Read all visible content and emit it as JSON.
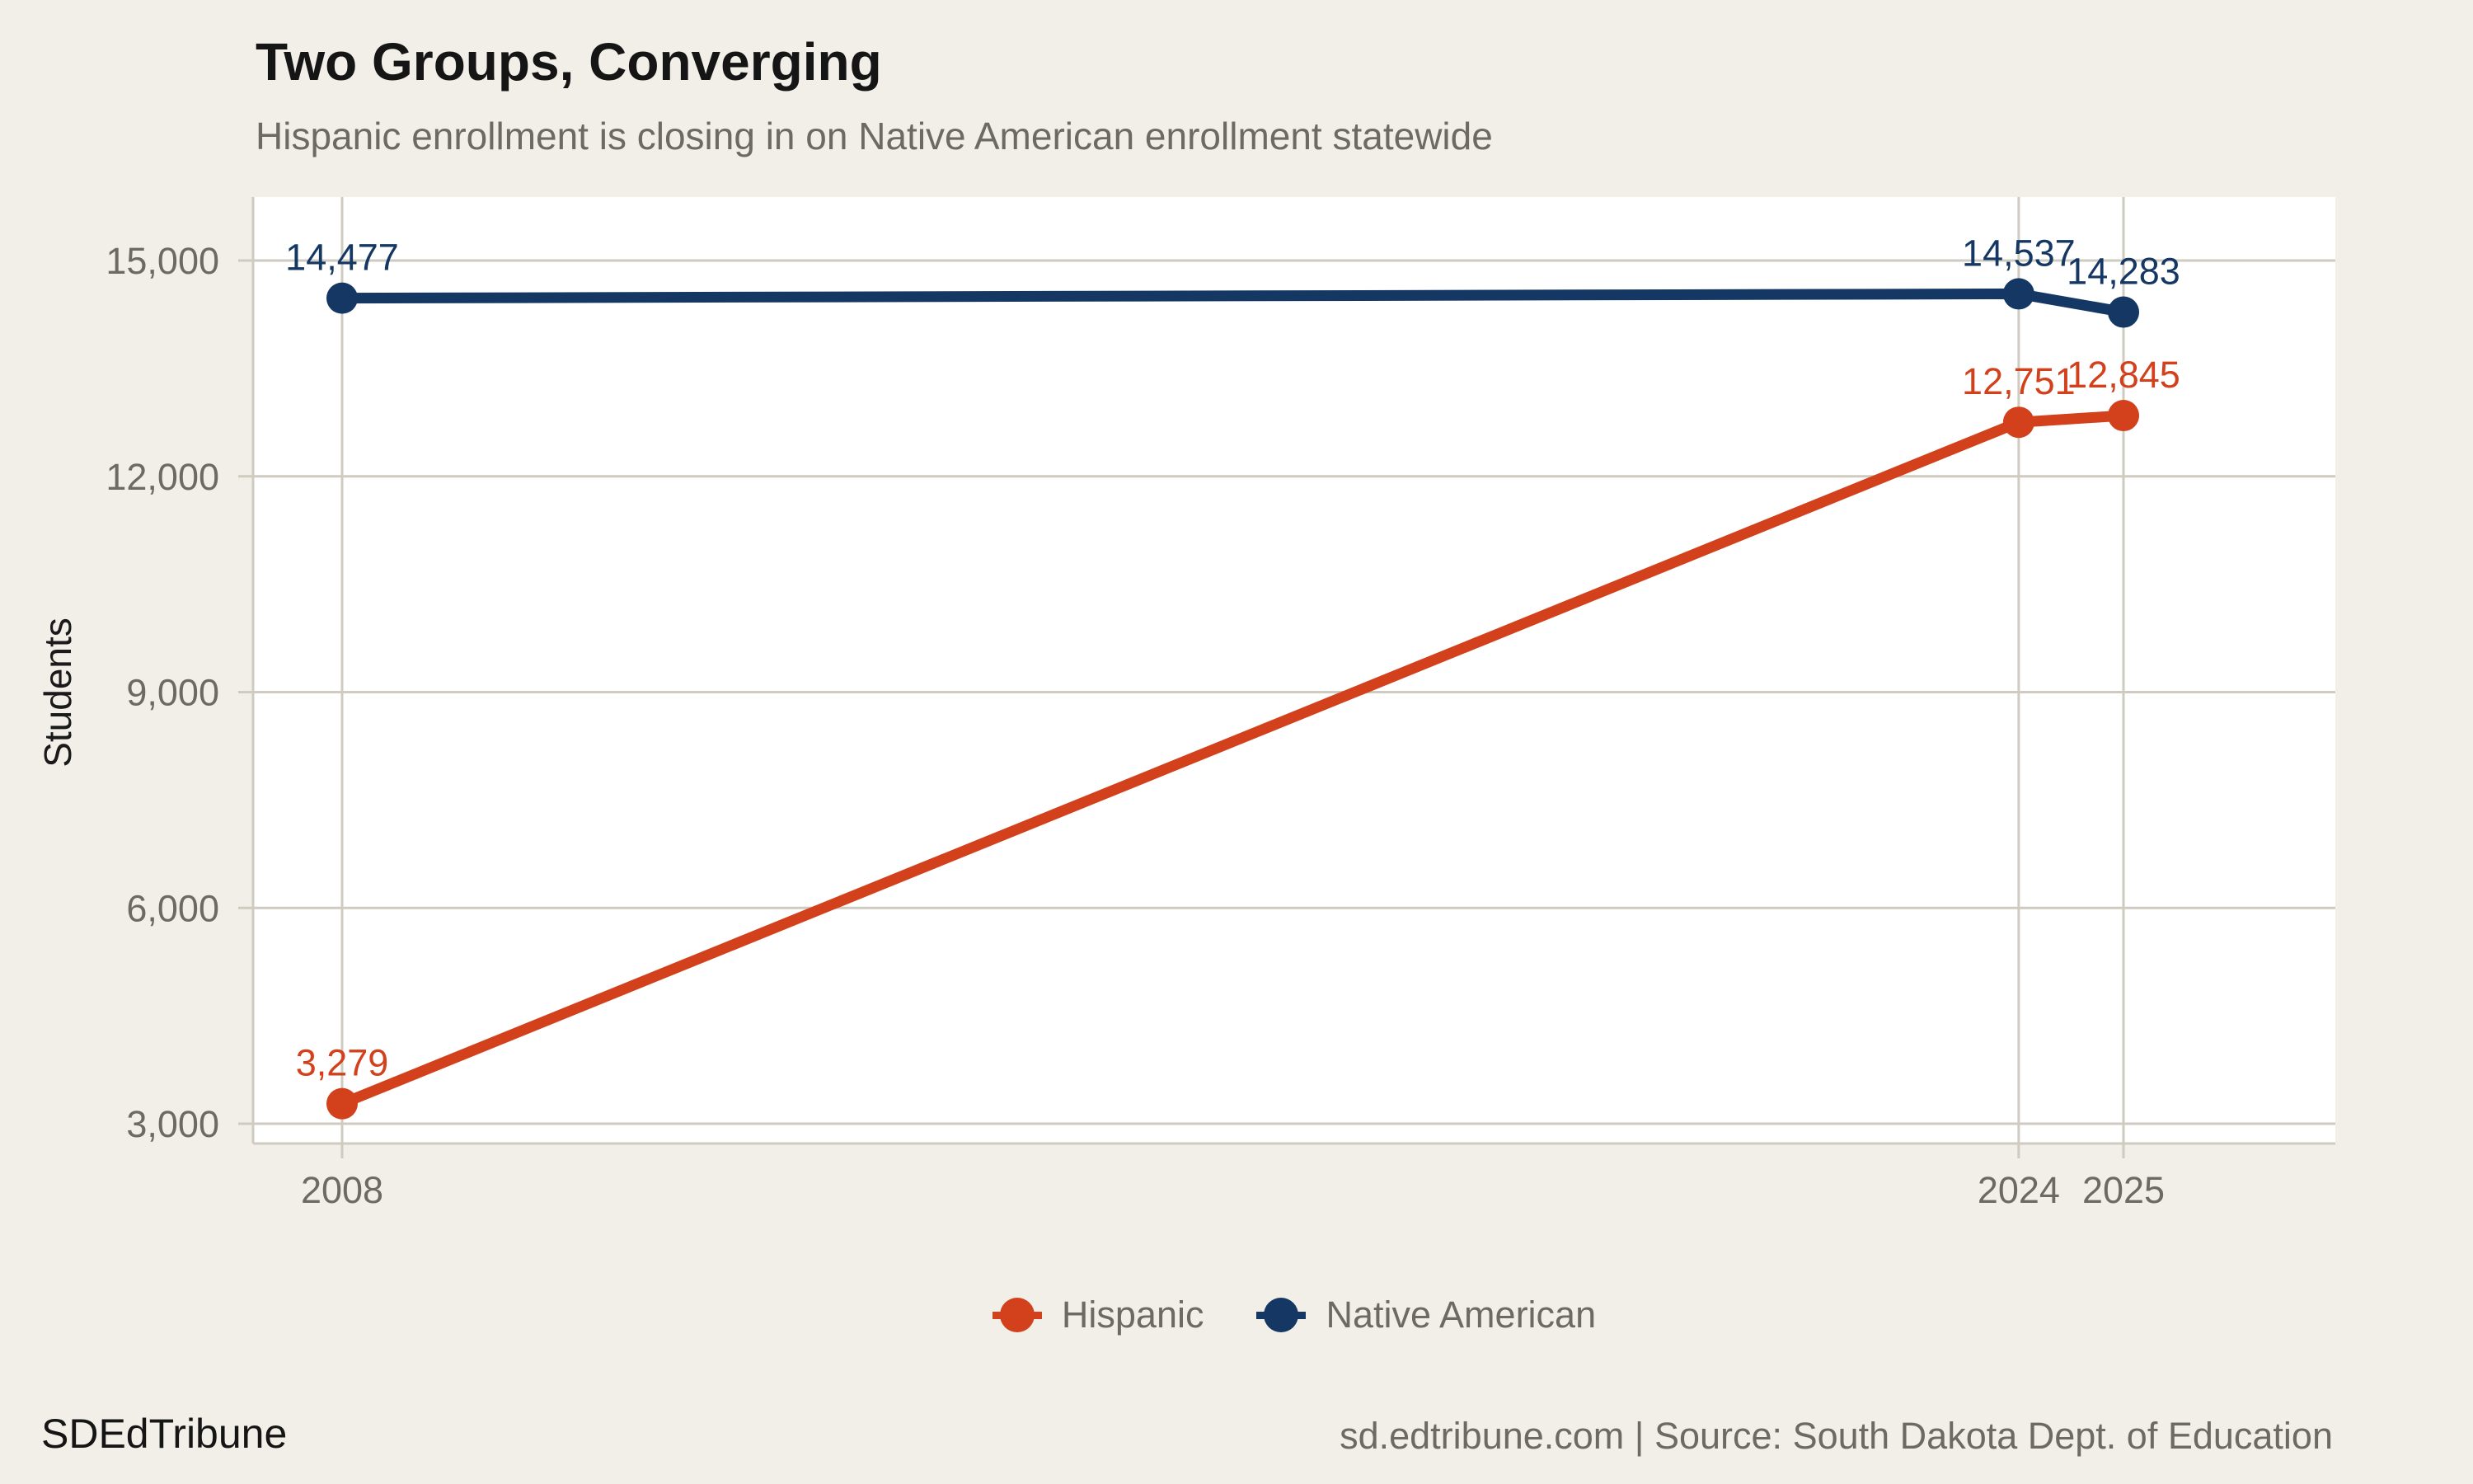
{
  "header": {
    "title": "Two Groups, Converging",
    "subtitle": "Hispanic enrollment is closing in on Native American enrollment statewide"
  },
  "chart_data": {
    "type": "line",
    "title": "Two Groups, Converging",
    "subtitle": "Hispanic enrollment is closing in on Native American enrollment statewide",
    "ylabel": "Students",
    "xlabel": "",
    "x": [
      2008,
      2024,
      2025
    ],
    "x_tick_labels": [
      "2008",
      "2024",
      "2025"
    ],
    "series": [
      {
        "name": "Hispanic",
        "color": "#d2401c",
        "values": [
          3279,
          12751,
          12845
        ],
        "point_labels": [
          "3,279",
          "12,751",
          "12,845"
        ]
      },
      {
        "name": "Native American",
        "color": "#143863",
        "values": [
          14477,
          14537,
          14283
        ],
        "point_labels": [
          "14,477",
          "14,537",
          "14,283"
        ]
      }
    ],
    "y_ticks": [
      3000,
      6000,
      9000,
      12000,
      15000
    ],
    "y_tick_labels": [
      "3,000",
      "6,000",
      "9,000",
      "12,000",
      "15,000"
    ],
    "ylim": [
      3000,
      15000
    ],
    "xlim": [
      2008,
      2025
    ],
    "grid": true,
    "legend_position": "bottom"
  },
  "legend": {
    "items": [
      {
        "label": "Hispanic",
        "color": "#d2401c"
      },
      {
        "label": "Native American",
        "color": "#143863"
      }
    ]
  },
  "footer": {
    "brand": "SDEdTribune",
    "source": "sd.edtribune.com | Source: South Dakota Dept. of Education"
  },
  "palette": {
    "background": "#f2efe9",
    "panel": "#ffffff",
    "grid": "#cfcbc0",
    "axis_text": "#6e6a62",
    "title_text": "#151515"
  }
}
